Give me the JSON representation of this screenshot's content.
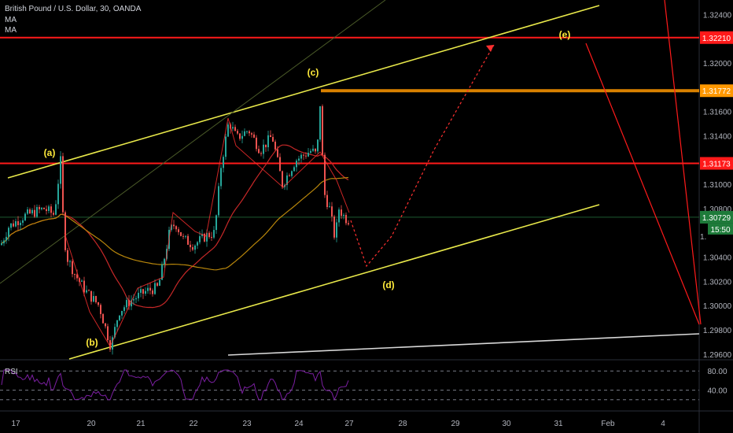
{
  "header": {
    "symbol_title": "British Pound / U.S. Dollar, 30, OANDA",
    "ma_label_1": "MA",
    "ma_label_2": "MA"
  },
  "rsi": {
    "label": "RSI",
    "levels": [
      "80.00",
      "40.00"
    ]
  },
  "countdown": "15:50",
  "colors": {
    "background": "#000000",
    "candle_up": "#26a69a",
    "candle_down": "#ef5350",
    "level_red": "#ff1a1a",
    "level_orange": "#ff9800",
    "channel_yellow": "#e8e84a",
    "rsi_line": "#7b1fa2",
    "label_yellow": "#ffeb3b"
  },
  "chart_data": {
    "type": "candlestick",
    "price_axis": {
      "range": [
        1.2956,
        1.3252
      ],
      "ticks": [
        "1.32400",
        "1.32000",
        "1.31600",
        "1.31400",
        "1.31000",
        "1.30800",
        "1.30400",
        "1.30200",
        "1.30000",
        "1.29800",
        "1.29600"
      ]
    },
    "time_axis": {
      "labels": [
        "17",
        "20",
        "21",
        "22",
        "23",
        "24",
        "27",
        "28",
        "29",
        "30",
        "31",
        "Feb",
        "4"
      ]
    },
    "price_tags": [
      {
        "label": "1.32210",
        "value": 1.3221,
        "color": "#ff1a1a"
      },
      {
        "label": "1.31772",
        "value": 1.31772,
        "color": "#ff9800"
      },
      {
        "label": "1.31173",
        "value": 1.31173,
        "color": "#ff1a1a"
      },
      {
        "label": "1.30729",
        "value": 1.30729,
        "color": "#1e7b3a"
      }
    ],
    "truncated_tag": "1.",
    "wave_labels": [
      "(a)",
      "(b)",
      "(c)",
      "(d)",
      "(e)"
    ],
    "rsi_levels": [
      80,
      40
    ]
  }
}
